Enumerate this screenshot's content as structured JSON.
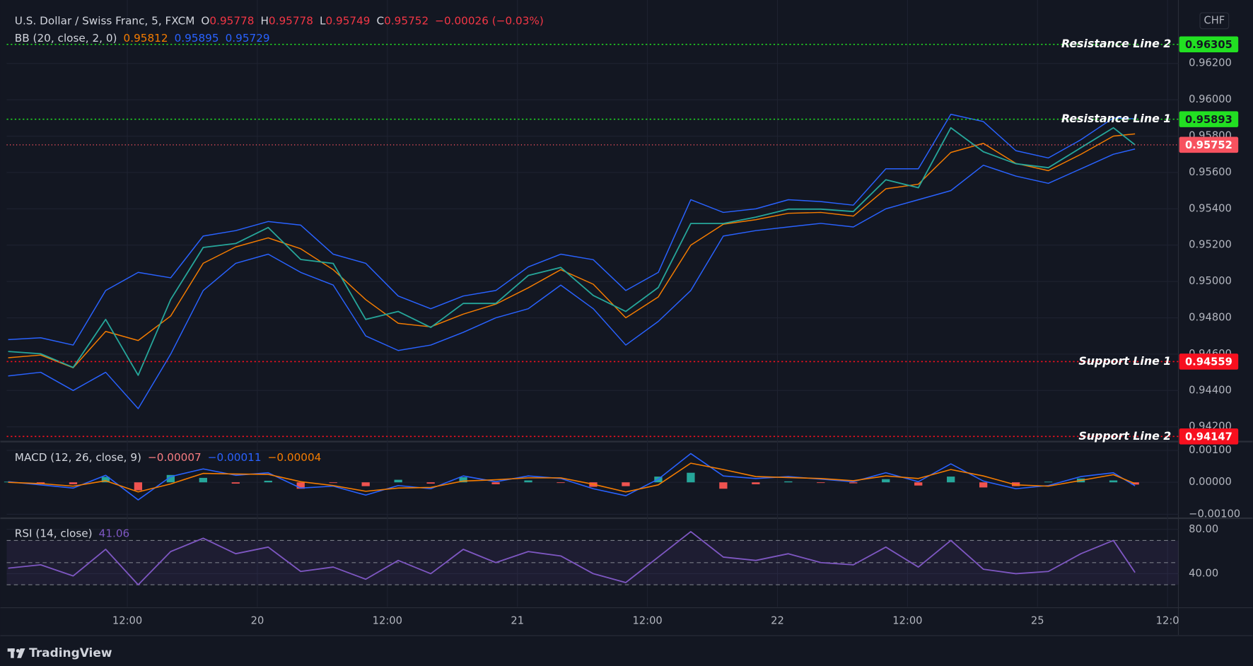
{
  "brand": "TradingView",
  "chart_data": [
    {
      "type": "line",
      "title": "U.S. Dollar / Swiss Franc, 5, FXCM",
      "ohlc": [
        {
          "label": "O",
          "value": 0.95778
        },
        {
          "label": "H",
          "value": 0.95778
        },
        {
          "label": "L",
          "value": 0.95749
        },
        {
          "label": "C",
          "value": 0.95752
        }
      ],
      "change": "−0.00026 (−0.03%)",
      "legend_color": "#f23645",
      "indicator": {
        "name": "BB (20, close, 2, 0)",
        "values": [
          0.95812,
          0.95895,
          0.95729
        ],
        "colors": [
          "#f57c00",
          "#2962ff",
          "#2962ff"
        ]
      },
      "currency": "CHF",
      "x": [
        1,
        4,
        7,
        10,
        13,
        16,
        19,
        22,
        25,
        28,
        31,
        34,
        37,
        40,
        43,
        46,
        49,
        52,
        55,
        58,
        61,
        64,
        67,
        70,
        73,
        76,
        79,
        82,
        85,
        88,
        91,
        94,
        97,
        100,
        103,
        105
      ],
      "xlim": [
        0.87,
        109
      ],
      "xticks": [
        {
          "value": 12,
          "label": "12:00"
        },
        {
          "value": 24,
          "label": "20"
        },
        {
          "value": 36,
          "label": "12:00"
        },
        {
          "value": 48,
          "label": "21"
        },
        {
          "value": 60,
          "label": "12:00"
        },
        {
          "value": 72,
          "label": "22"
        },
        {
          "value": 84,
          "label": "12:00"
        },
        {
          "value": 96,
          "label": "25"
        },
        {
          "value": 108,
          "label": "12:0"
        }
      ],
      "ylim": [
        0.94123,
        0.96514
      ],
      "yticks": [
        {
          "value": 0.942,
          "label": "0.94200"
        },
        {
          "value": 0.944,
          "label": "0.94400"
        },
        {
          "value": 0.946,
          "label": "0.94600"
        },
        {
          "value": 0.948,
          "label": "0.94800"
        },
        {
          "value": 0.95,
          "label": "0.95000"
        },
        {
          "value": 0.952,
          "label": "0.95200"
        },
        {
          "value": 0.954,
          "label": "0.95400"
        },
        {
          "value": 0.956,
          "label": "0.95600"
        },
        {
          "value": 0.958,
          "label": "0.95800"
        },
        {
          "value": 0.96,
          "label": "0.96000"
        },
        {
          "value": 0.962,
          "label": "0.96200"
        }
      ],
      "grid": true,
      "series": [
        {
          "color": "#2962ff",
          "values": [
            0.9468,
            0.9469,
            0.9465,
            0.9495,
            0.9505,
            0.9502,
            0.9525,
            0.9528,
            0.9533,
            0.9531,
            0.9515,
            0.951,
            0.9492,
            0.9485,
            0.9492,
            0.9495,
            0.9508,
            0.9515,
            0.9512,
            0.9495,
            0.9505,
            0.9545,
            0.9538,
            0.954,
            0.9545,
            0.9544,
            0.9542,
            0.9562,
            0.9562,
            0.9592,
            0.9588,
            0.9572,
            0.9568,
            0.9578,
            0.959,
            0.95895
          ]
        },
        {
          "color": "#2962ff",
          "values": [
            0.9448,
            0.945,
            0.944,
            0.945,
            0.943,
            0.946,
            0.9495,
            0.951,
            0.9515,
            0.9505,
            0.9498,
            0.947,
            0.9462,
            0.9465,
            0.9472,
            0.948,
            0.9485,
            0.9498,
            0.9485,
            0.9465,
            0.9478,
            0.9495,
            0.9525,
            0.9528,
            0.953,
            0.9532,
            0.953,
            0.954,
            0.9545,
            0.955,
            0.9564,
            0.9558,
            0.9554,
            0.9562,
            0.957,
            0.95729
          ]
        },
        {
          "color": "#f57c00",
          "values": [
            0.9458,
            0.94595,
            0.94525,
            0.94725,
            0.94675,
            0.9481,
            0.951,
            0.9519,
            0.9524,
            0.9518,
            0.95065,
            0.949,
            0.9477,
            0.9475,
            0.9482,
            0.94875,
            0.94965,
            0.95065,
            0.94985,
            0.948,
            0.94915,
            0.952,
            0.95315,
            0.9534,
            0.95375,
            0.9538,
            0.9536,
            0.9551,
            0.95535,
            0.9571,
            0.9576,
            0.9565,
            0.9561,
            0.957,
            0.958,
            0.95812
          ]
        },
        {
          "color": "#26a69a",
          "values": [
            0.94615,
            0.94602,
            0.94527,
            0.94791,
            0.94484,
            0.94901,
            0.95187,
            0.95209,
            0.95297,
            0.95121,
            0.95099,
            0.94791,
            0.94835,
            0.94747,
            0.94879,
            0.94879,
            0.95033,
            0.95077,
            0.94923,
            0.94835,
            0.94967,
            0.95319,
            0.95319,
            0.95354,
            0.95398,
            0.95398,
            0.95385,
            0.9556,
            0.95516,
            0.95846,
            0.95714,
            0.95648,
            0.95626,
            0.95736,
            0.95846,
            0.95752
          ]
        }
      ],
      "lines": [
        {
          "label": "Resistance Line 2",
          "value": 0.96305,
          "color": "#22e022",
          "text_color": "#131722"
        },
        {
          "label": "Resistance Line 1",
          "value": 0.95893,
          "color": "#22e022",
          "text_color": "#131722"
        },
        {
          "label": "Support Line 1",
          "value": 0.94559,
          "color": "#f7101f",
          "text_color": "#ffffff"
        },
        {
          "label": "Support Line 2",
          "value": 0.94147,
          "color": "#f7101f",
          "text_color": "#ffffff"
        }
      ],
      "price_line": {
        "value": 0.95752,
        "color": "#f7525f",
        "text_color": "#ffffff"
      }
    },
    {
      "type": "macd",
      "title": "MACD (12, 26, close, 9)",
      "legend_values": [
        "−0.00007",
        "−0.00011",
        "−0.00004"
      ],
      "legend_colors": [
        "#f77c80",
        "#2962ff",
        "#f57c00"
      ],
      "x": [
        1,
        4,
        7,
        10,
        13,
        16,
        19,
        22,
        25,
        28,
        31,
        34,
        37,
        40,
        43,
        46,
        49,
        52,
        55,
        58,
        61,
        64,
        67,
        70,
        73,
        76,
        79,
        82,
        85,
        88,
        91,
        94,
        97,
        100,
        103,
        105
      ],
      "xlim": [
        0.87,
        109
      ],
      "ylim": [
        -0.0011,
        0.001225
      ],
      "yticks": [
        {
          "value": -0.001,
          "label": "−0.00100"
        },
        {
          "value": 0,
          "label": "0.00000"
        },
        {
          "value": 0.001,
          "label": "0.00100"
        }
      ],
      "histogram": {
        "colors": [
          "#26a69a",
          "#ef5350"
        ],
        "values": [
          2e-05,
          -4e-05,
          -6e-05,
          0.00017,
          -0.00025,
          0.00023,
          0.00014,
          -4e-05,
          5e-05,
          -0.0002,
          -2e-05,
          -0.00012,
          8e-05,
          -4e-05,
          0.00016,
          -6e-05,
          6e-05,
          -2e-05,
          -0.00014,
          -0.00012,
          0.00018,
          0.0003,
          -0.0002,
          -6e-05,
          3e-05,
          -2e-05,
          -3e-05,
          0.0001,
          -0.0001,
          0.00018,
          -0.00016,
          -0.00012,
          2e-05,
          0.00012,
          6e-05,
          -7e-05
        ]
      },
      "series": [
        {
          "color": "#2962ff",
          "values": [
            2e-05,
            -8e-05,
            -0.00018,
            0.00022,
            -0.00055,
            0.00018,
            0.00042,
            0.00022,
            0.0003,
            -0.00018,
            -0.00012,
            -0.0004,
            -0.0001,
            -0.0002,
            0.0002,
            2e-05,
            0.0002,
            0.00012,
            -0.0002,
            -0.00042,
            0.0001,
            0.0009,
            0.0002,
            0.00012,
            0.00018,
            0.0001,
            2e-05,
            0.0003,
            2e-05,
            0.00058,
            4e-05,
            -0.0002,
            -0.0001,
            0.00018,
            0.0003,
            -0.00011
          ]
        },
        {
          "color": "#f57c00",
          "values": [
            0,
            -4e-05,
            -0.00012,
            5e-05,
            -0.0003,
            -5e-05,
            0.00028,
            0.00026,
            0.00025,
            2e-05,
            -0.0001,
            -0.00028,
            -0.00018,
            -0.00016,
            4e-05,
            8e-05,
            0.00014,
            0.00014,
            -6e-05,
            -0.0003,
            -8e-05,
            0.0006,
            0.0004,
            0.00018,
            0.00015,
            0.00012,
            5e-05,
            0.0002,
            0.00012,
            0.0004,
            0.0002,
            -8e-05,
            -0.00012,
            6e-05,
            0.00024,
            -4e-05
          ]
        }
      ]
    },
    {
      "type": "line",
      "title": "RSI (14, close)",
      "legend_values": [
        41.06
      ],
      "legend_colors": [
        "#7e57c2"
      ],
      "x": [
        1,
        4,
        7,
        10,
        13,
        16,
        19,
        22,
        25,
        28,
        31,
        34,
        37,
        40,
        43,
        46,
        49,
        52,
        55,
        58,
        61,
        64,
        67,
        70,
        73,
        76,
        79,
        82,
        85,
        88,
        91,
        94,
        97,
        100,
        103,
        105
      ],
      "xlim": [
        0.87,
        109
      ],
      "ylim": [
        10,
        88.6
      ],
      "yticks": [
        {
          "value": 40,
          "label": "40.00"
        },
        {
          "value": 80,
          "label": "80.00"
        }
      ],
      "levels": [
        70,
        50,
        30
      ],
      "band_color": "#7e57c2",
      "series": [
        {
          "color": "#7e57c2",
          "values": [
            45,
            48,
            38,
            62,
            30,
            60,
            72,
            58,
            64,
            42,
            46,
            35,
            52,
            40,
            62,
            50,
            60,
            56,
            40,
            32,
            55,
            78,
            55,
            52,
            58,
            50,
            48,
            64,
            46,
            70,
            44,
            40,
            42,
            58,
            70,
            41.06
          ]
        }
      ]
    }
  ]
}
